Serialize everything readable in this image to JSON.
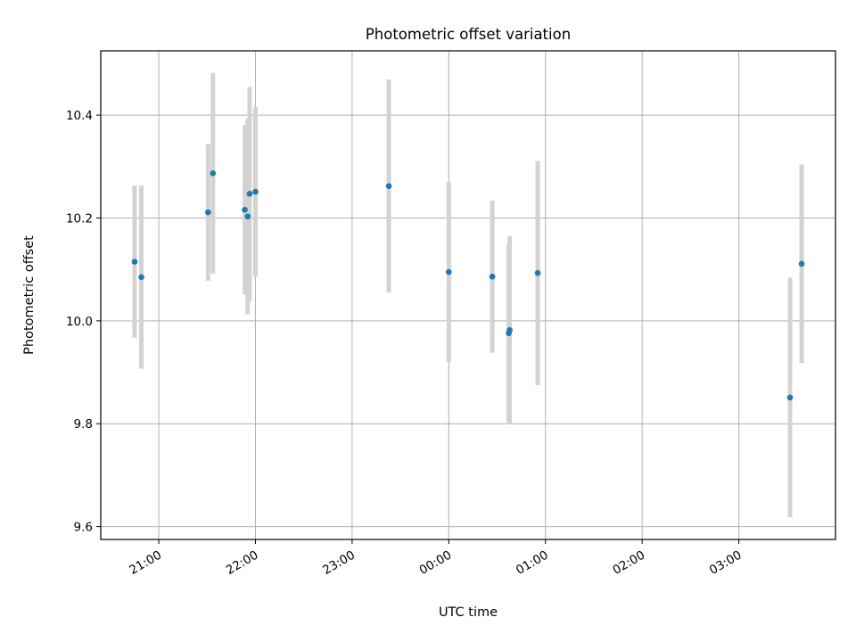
{
  "chart_data": {
    "type": "scatter",
    "title": "Photometric offset variation",
    "xlabel": "UTC time",
    "ylabel": "Photometric offset",
    "x_unit": "UTC time (hours; values past 24 are after midnight)",
    "xlim": [
      20.4,
      28.0
    ],
    "ylim": [
      9.575,
      10.525
    ],
    "xticks": [
      {
        "value": 21,
        "label": "21:00"
      },
      {
        "value": 22,
        "label": "22:00"
      },
      {
        "value": 23,
        "label": "23:00"
      },
      {
        "value": 24,
        "label": "00:00"
      },
      {
        "value": 25,
        "label": "01:00"
      },
      {
        "value": 26,
        "label": "02:00"
      },
      {
        "value": 27,
        "label": "03:00"
      }
    ],
    "yticks": [
      {
        "value": 9.6,
        "label": "9.6"
      },
      {
        "value": 9.8,
        "label": "9.8"
      },
      {
        "value": 10.0,
        "label": "10.0"
      },
      {
        "value": 10.2,
        "label": "10.2"
      },
      {
        "value": 10.4,
        "label": "10.4"
      }
    ],
    "grid": true,
    "colors": {
      "point": "#1f77b4",
      "errorbar": "#d3d3d3",
      "grid": "#b0b0b0",
      "axes": "#000000"
    },
    "series": [
      {
        "points": [
          {
            "x": 20.75,
            "y": 10.115,
            "err": 0.148
          },
          {
            "x": 20.82,
            "y": 10.085,
            "err": 0.178
          },
          {
            "x": 21.51,
            "y": 10.211,
            "err": 0.133
          },
          {
            "x": 21.56,
            "y": 10.287,
            "err": 0.195
          },
          {
            "x": 21.89,
            "y": 10.216,
            "err": 0.165
          },
          {
            "x": 21.92,
            "y": 10.203,
            "err": 0.19
          },
          {
            "x": 21.94,
            "y": 10.247,
            "err": 0.208
          },
          {
            "x": 22.0,
            "y": 10.251,
            "err": 0.165
          },
          {
            "x": 23.38,
            "y": 10.262,
            "err": 0.207
          },
          {
            "x": 24.0,
            "y": 10.095,
            "err": 0.175
          },
          {
            "x": 24.45,
            "y": 10.086,
            "err": 0.148
          },
          {
            "x": 24.62,
            "y": 9.976,
            "err": 0.173
          },
          {
            "x": 24.63,
            "y": 9.982,
            "err": 0.183
          },
          {
            "x": 24.92,
            "y": 10.093,
            "err": 0.218
          },
          {
            "x": 27.53,
            "y": 9.851,
            "err": 0.233
          },
          {
            "x": 27.65,
            "y": 10.111,
            "err": 0.193
          }
        ]
      }
    ]
  }
}
